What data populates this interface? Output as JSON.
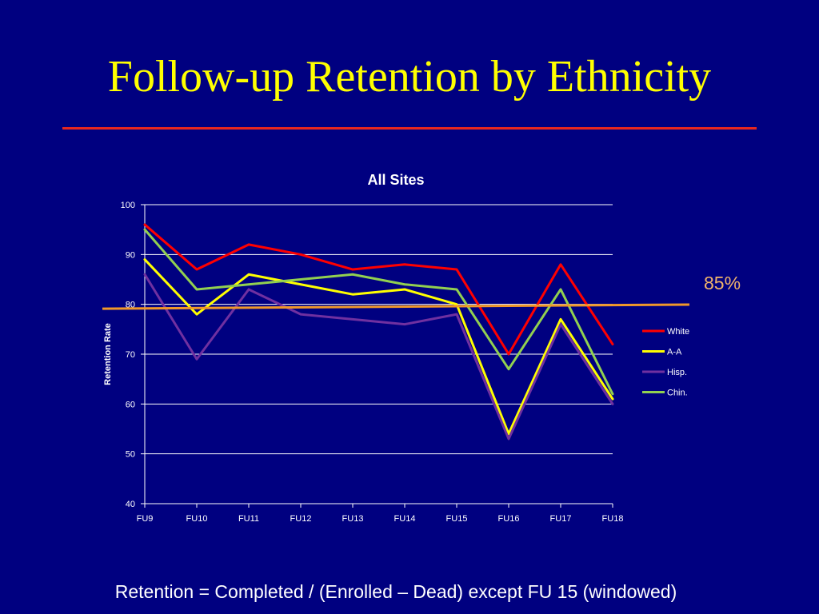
{
  "slide": {
    "title": "Follow-up Retention by Ethnicity",
    "footnote": "Retention = Completed / (Enrolled – Dead) except FU 15 (windowed)"
  },
  "colors": {
    "background": "#000080",
    "title": "#ffff00",
    "title_rule": "#e8271f",
    "reference_line": "#f0982a",
    "reference_label": "#f2b46b"
  },
  "chart_data": {
    "type": "line",
    "title": "All Sites",
    "xlabel": "",
    "ylabel": "Retention Rate",
    "ylim": [
      40,
      100
    ],
    "yticks": [
      40,
      50,
      60,
      70,
      80,
      90,
      100
    ],
    "grid": true,
    "legend_position": "right",
    "categories": [
      "FU9",
      "FU10",
      "FU11",
      "FU12",
      "FU13",
      "FU14",
      "FU15",
      "FU16",
      "FU17",
      "FU18"
    ],
    "series": [
      {
        "name": "White",
        "color": "#ff0000",
        "values": [
          96,
          87,
          92,
          90,
          87,
          88,
          87,
          70,
          88,
          72
        ]
      },
      {
        "name": "A-A",
        "color": "#ffff00",
        "values": [
          89,
          78,
          86,
          84,
          82,
          83,
          80,
          54,
          77,
          61
        ]
      },
      {
        "name": "Hisp.",
        "color": "#7030a0",
        "values": [
          86,
          69,
          83,
          78,
          77,
          76,
          78,
          53,
          76,
          60
        ]
      },
      {
        "name": "Chin.",
        "color": "#92d050",
        "values": [
          95,
          83,
          84,
          85,
          86,
          84,
          83,
          67,
          83,
          62
        ]
      }
    ],
    "reference_line": {
      "label": "85%",
      "start_value": 83.3,
      "end_value": 83.8
    }
  }
}
